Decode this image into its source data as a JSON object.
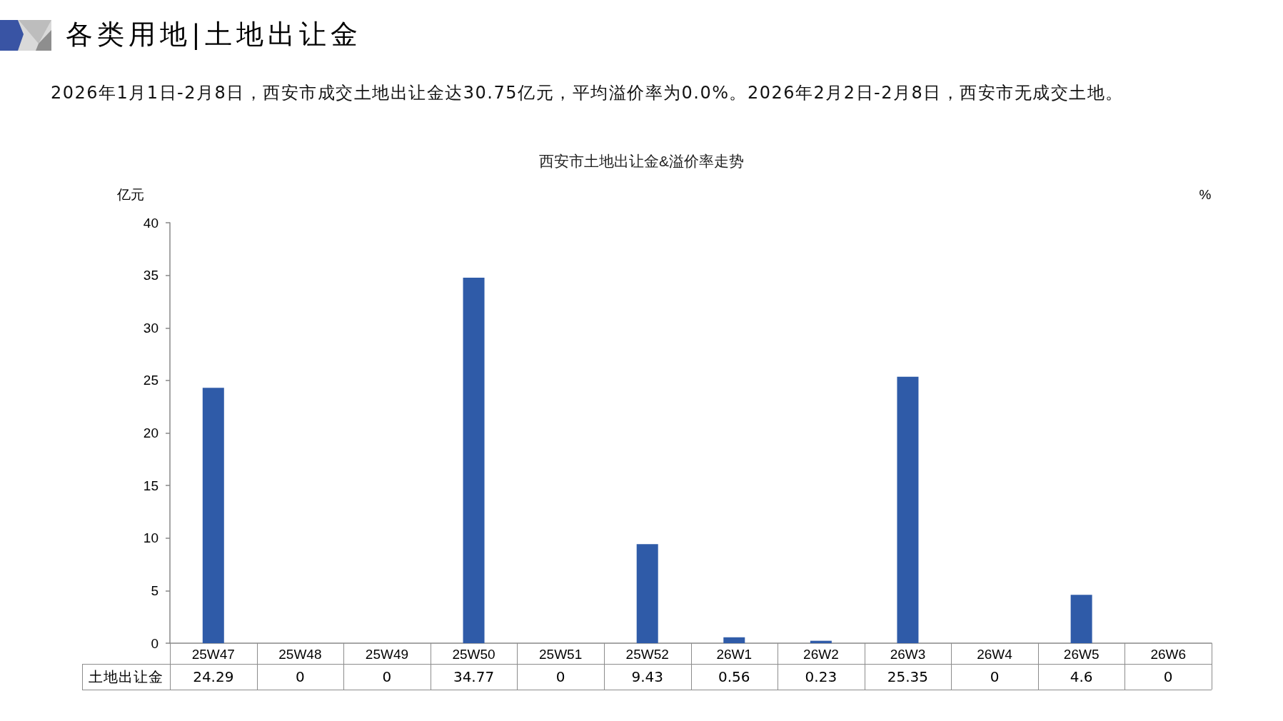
{
  "chart_data": {
    "type": "bar",
    "title": "西安市土地出让金&溢价率走势",
    "subtitle": "2026年1月1日-2月8日，西安市成交土地出让金达30.75亿元，平均溢价率为0.0%。2026年2月2日-2月8日，西安市无成交土地。",
    "ylabel": "亿元",
    "y2label": "%",
    "annotations": [
      "各类用地|土地出让金"
    ],
    "categories": [
      "25W47",
      "25W48",
      "25W49",
      "25W50",
      "25W51",
      "25W52",
      "26W1",
      "26W2",
      "26W3",
      "26W4",
      "26W5",
      "26W6"
    ],
    "series": [
      {
        "name": "土地出让金",
        "color": "#2f5ba8",
        "values": [
          24.29,
          0,
          0,
          34.77,
          0,
          9.43,
          0.56,
          0.23,
          25.35,
          0,
          4.6,
          0
        ]
      }
    ],
    "ylim": [
      0,
      40
    ],
    "yticks": [
      0,
      5,
      10,
      15,
      20,
      25,
      30,
      35,
      40
    ],
    "data_labels": true
  }
}
